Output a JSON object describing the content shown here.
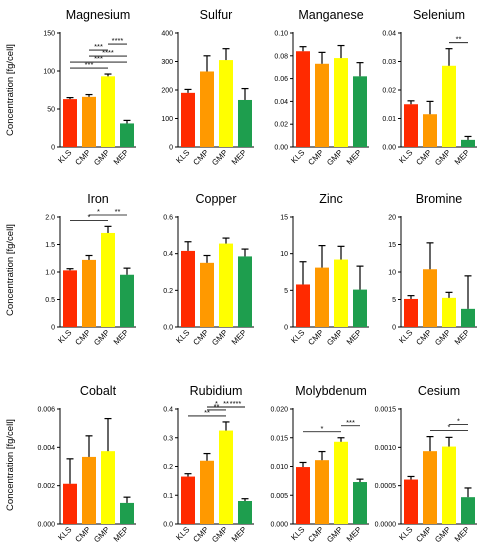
{
  "colors": [
    "#ff2a00",
    "#ff9900",
    "#ffff00",
    "#1e9e4e"
  ],
  "ylabel": "Concentration [fg/cell]",
  "chart_data": [
    {
      "type": "bar",
      "title": "Magnesium",
      "categories": [
        "KLS",
        "CMP",
        "GMP",
        "MEP"
      ],
      "values": [
        63,
        66,
        93,
        31
      ],
      "errors": [
        2,
        3,
        3,
        4
      ],
      "ylim": [
        0,
        150
      ],
      "yticks": [
        0,
        50,
        100,
        150
      ],
      "ytick_labels": [
        "0",
        "50",
        "100",
        "150"
      ],
      "brackets": [
        {
          "from": 0,
          "to": 2,
          "label": "***"
        },
        {
          "from": 0,
          "to": 3,
          "label": "***"
        },
        {
          "from": 1,
          "to": 3,
          "label": "****"
        },
        {
          "from": 1,
          "to": 2,
          "label": "***"
        },
        {
          "from": 2,
          "to": 3,
          "label": "****"
        }
      ]
    },
    {
      "type": "bar",
      "title": "Sulfur",
      "categories": [
        "KLS",
        "CMP",
        "GMP",
        "MEP"
      ],
      "values": [
        190,
        265,
        305,
        165
      ],
      "errors": [
        12,
        55,
        40,
        40
      ],
      "ylim": [
        0,
        400
      ],
      "yticks": [
        0,
        100,
        200,
        300,
        400
      ],
      "ytick_labels": [
        "0",
        "100",
        "200",
        "300",
        "400"
      ],
      "brackets": []
    },
    {
      "type": "bar",
      "title": "Manganese",
      "categories": [
        "KLS",
        "CMP",
        "GMP",
        "MEP"
      ],
      "values": [
        0.084,
        0.073,
        0.078,
        0.062
      ],
      "errors": [
        0.004,
        0.01,
        0.011,
        0.012
      ],
      "ylim": [
        0,
        0.1
      ],
      "yticks": [
        0,
        0.02,
        0.04,
        0.06,
        0.08,
        0.1
      ],
      "ytick_labels": [
        "0.00",
        "0.02",
        "0.04",
        "0.06",
        "0.08",
        "0.10"
      ],
      "brackets": []
    },
    {
      "type": "bar",
      "title": "Selenium",
      "categories": [
        "KLS",
        "CMP",
        "GMP",
        "MEP"
      ],
      "values": [
        0.015,
        0.0115,
        0.0285,
        0.0025
      ],
      "errors": [
        0.0012,
        0.0045,
        0.006,
        0.0012
      ],
      "ylim": [
        0,
        0.04
      ],
      "yticks": [
        0,
        0.01,
        0.02,
        0.03,
        0.04
      ],
      "ytick_labels": [
        "0.00",
        "0.01",
        "0.02",
        "0.03",
        "0.04"
      ],
      "brackets": [
        {
          "from": 2,
          "to": 3,
          "label": "**"
        }
      ]
    },
    {
      "type": "bar",
      "title": "Iron",
      "categories": [
        "KLS",
        "CMP",
        "GMP",
        "MEP"
      ],
      "values": [
        1.03,
        1.22,
        1.71,
        0.95
      ],
      "errors": [
        0.03,
        0.08,
        0.12,
        0.12
      ],
      "ylim": [
        0,
        2
      ],
      "yticks": [
        0,
        0.5,
        1,
        1.5,
        2
      ],
      "ytick_labels": [
        "0",
        "0.5",
        "1.0",
        "1.5",
        "2.0"
      ],
      "brackets": [
        {
          "from": 0,
          "to": 2,
          "label": "*"
        },
        {
          "from": 1,
          "to": 2,
          "label": "*"
        },
        {
          "from": 2,
          "to": 3,
          "label": "**"
        }
      ]
    },
    {
      "type": "bar",
      "title": "Copper",
      "categories": [
        "KLS",
        "CMP",
        "GMP",
        "MEP"
      ],
      "values": [
        0.415,
        0.35,
        0.455,
        0.385
      ],
      "errors": [
        0.05,
        0.04,
        0.03,
        0.04
      ],
      "ylim": [
        0,
        0.6
      ],
      "yticks": [
        0,
        0.2,
        0.4,
        0.6
      ],
      "ytick_labels": [
        "0.0",
        "0.2",
        "0.4",
        "0.6"
      ],
      "brackets": []
    },
    {
      "type": "bar",
      "title": "Zinc",
      "categories": [
        "KLS",
        "CMP",
        "GMP",
        "MEP"
      ],
      "values": [
        5.8,
        8.1,
        9.2,
        5.1
      ],
      "errors": [
        3.1,
        3,
        1.8,
        3.2
      ],
      "ylim": [
        0,
        15
      ],
      "yticks": [
        0,
        5,
        10,
        15
      ],
      "ytick_labels": [
        "0",
        "5",
        "10",
        "15"
      ],
      "brackets": []
    },
    {
      "type": "bar",
      "title": "Bromine",
      "categories": [
        "KLS",
        "CMP",
        "GMP",
        "MEP"
      ],
      "values": [
        5.1,
        10.5,
        5.3,
        3.3
      ],
      "errors": [
        0.6,
        4.8,
        1,
        6
      ],
      "ylim": [
        0,
        20
      ],
      "yticks": [
        0,
        5,
        10,
        15,
        20
      ],
      "ytick_labels": [
        "0",
        "5",
        "10",
        "15",
        "20"
      ],
      "brackets": []
    },
    {
      "type": "bar",
      "title": "Cobalt",
      "categories": [
        "KLS",
        "CMP",
        "GMP",
        "MEP"
      ],
      "values": [
        0.0021,
        0.0035,
        0.0038,
        0.0011
      ],
      "errors": [
        0.0013,
        0.0011,
        0.0017,
        0.0003
      ],
      "ylim": [
        0,
        0.006
      ],
      "yticks": [
        0,
        0.002,
        0.004,
        0.006
      ],
      "ytick_labels": [
        "0.000",
        "0.002",
        "0.004",
        "0.006"
      ],
      "brackets": []
    },
    {
      "type": "bar",
      "title": "Rubidium",
      "categories": [
        "KLS",
        "CMP",
        "GMP",
        "MEP"
      ],
      "values": [
        0.165,
        0.22,
        0.325,
        0.08
      ],
      "errors": [
        0.01,
        0.025,
        0.03,
        0.008
      ],
      "ylim": [
        0,
        0.4
      ],
      "yticks": [
        0,
        0.1,
        0.2,
        0.3,
        0.4
      ],
      "ytick_labels": [
        "0.0",
        "0.1",
        "0.2",
        "0.3",
        "0.4"
      ],
      "brackets": [
        {
          "from": 0,
          "to": 2,
          "label": "**"
        },
        {
          "from": 1,
          "to": 2,
          "label": "**"
        },
        {
          "from": 1,
          "to": 3,
          "label": "**"
        },
        {
          "from": 1,
          "to": 2,
          "label": "*"
        },
        {
          "from": 2,
          "to": 3,
          "label": "****"
        }
      ]
    },
    {
      "type": "bar",
      "title": "Molybdenum",
      "categories": [
        "KLS",
        "CMP",
        "GMP",
        "MEP"
      ],
      "values": [
        0.0099,
        0.0111,
        0.0143,
        0.0073
      ],
      "errors": [
        0.0008,
        0.0015,
        0.0007,
        0.0005
      ],
      "ylim": [
        0,
        0.02
      ],
      "yticks": [
        0,
        0.005,
        0.01,
        0.015,
        0.02
      ],
      "ytick_labels": [
        "0.000",
        "0.005",
        "0.010",
        "0.015",
        "0.020"
      ],
      "brackets": [
        {
          "from": 0,
          "to": 2,
          "label": "*"
        },
        {
          "from": 2,
          "to": 3,
          "label": "***"
        }
      ]
    },
    {
      "type": "bar",
      "title": "Cesium",
      "categories": [
        "KLS",
        "CMP",
        "GMP",
        "MEP"
      ],
      "values": [
        0.00058,
        0.00095,
        0.00101,
        0.00035
      ],
      "errors": [
        4e-05,
        0.00019,
        0.00012,
        0.00012
      ],
      "ylim": [
        0,
        0.0015
      ],
      "yticks": [
        0,
        0.0005,
        0.001,
        0.0015
      ],
      "ytick_labels": [
        "0.0000",
        "0.0005",
        "0.0010",
        "0.0015"
      ],
      "brackets": [
        {
          "from": 1,
          "to": 3,
          "label": "*"
        },
        {
          "from": 2,
          "to": 3,
          "label": "*"
        }
      ]
    }
  ]
}
